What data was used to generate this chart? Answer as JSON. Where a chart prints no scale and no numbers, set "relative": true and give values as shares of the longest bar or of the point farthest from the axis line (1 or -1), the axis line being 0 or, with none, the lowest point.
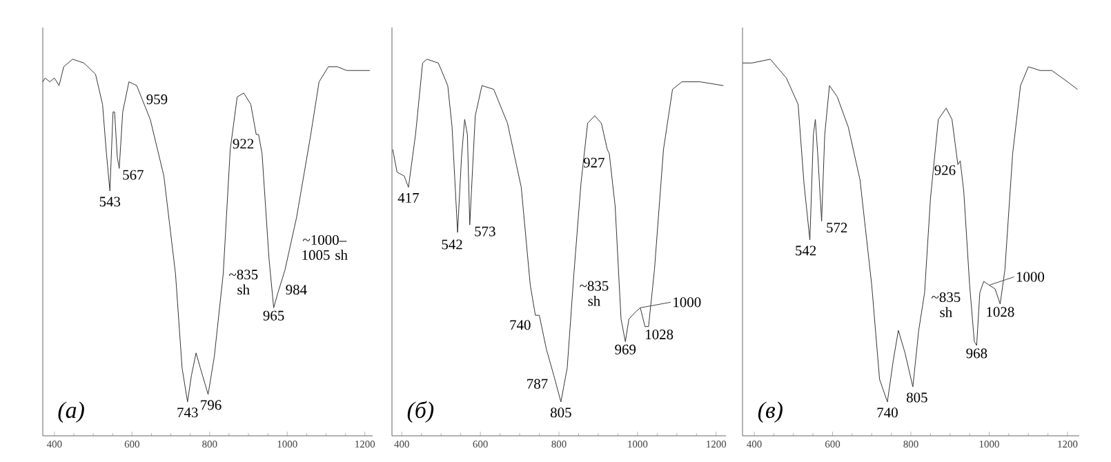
{
  "chart_data": [
    {
      "type": "line",
      "title": "(а)",
      "color": "#333333",
      "relative": true,
      "xlim": [
        370,
        1220
      ],
      "xticks": [
        400,
        600,
        800,
        1000,
        1200
      ],
      "x": [
        370,
        376,
        388,
        400,
        412,
        424,
        447,
        476,
        506,
        524,
        534,
        543,
        551,
        555,
        562,
        567,
        576,
        592,
        612,
        647,
        682,
        712,
        729,
        743,
        753,
        765,
        776,
        796,
        812,
        835,
        853,
        871,
        888,
        906,
        920,
        926,
        935,
        953,
        965,
        976,
        994,
        1024,
        1059,
        1082,
        1106,
        1129,
        1153,
        1212
      ],
      "values": [
        0.94,
        0.95,
        0.94,
        0.95,
        0.93,
        0.98,
        1.0,
        0.99,
        0.96,
        0.88,
        0.75,
        0.65,
        0.86,
        0.86,
        0.74,
        0.71,
        0.86,
        0.94,
        0.93,
        0.84,
        0.69,
        0.43,
        0.18,
        0.09,
        0.16,
        0.22,
        0.18,
        0.11,
        0.21,
        0.43,
        0.76,
        0.9,
        0.91,
        0.88,
        0.8,
        0.8,
        0.75,
        0.47,
        0.34,
        0.38,
        0.44,
        0.58,
        0.79,
        0.94,
        0.98,
        0.98,
        0.97,
        0.97
      ],
      "annotations": [
        {
          "text": "543",
          "x": 543,
          "y": 0.65
        },
        {
          "text": "567",
          "x": 567,
          "y": 0.71
        },
        {
          "text": "959",
          "x": 600,
          "y": 0.93
        },
        {
          "text": "922",
          "x": 926,
          "y": 0.8
        },
        {
          "text": "743",
          "x": 743,
          "y": 0.09
        },
        {
          "text": "796",
          "x": 796,
          "y": 0.11
        },
        {
          "text": "~835 sh",
          "x": 835,
          "y": 0.43
        },
        {
          "text": "965",
          "x": 965,
          "y": 0.34
        },
        {
          "text": "984",
          "x": 984,
          "y": 0.42
        },
        {
          "text": "~1000–1005 sh",
          "x": 1005,
          "y": 0.5
        }
      ]
    },
    {
      "type": "line",
      "title": "(б)",
      "color": "#333333",
      "relative": true,
      "xlim": [
        375,
        1225
      ],
      "xticks": [
        400,
        600,
        800,
        1000,
        1200
      ],
      "x": [
        377,
        388,
        406,
        417,
        435,
        453,
        464,
        493,
        517,
        528,
        542,
        552,
        560,
        567,
        573,
        587,
        604,
        634,
        669,
        704,
        727,
        740,
        750,
        768,
        787,
        805,
        821,
        838,
        856,
        873,
        891,
        908,
        923,
        928,
        943,
        958,
        969,
        978,
        996,
        1007,
        1019,
        1028,
        1043,
        1066,
        1089,
        1113,
        1159,
        1218
      ],
      "values": [
        0.76,
        0.7,
        0.69,
        0.66,
        0.8,
        0.99,
        1.0,
        0.99,
        0.93,
        0.82,
        0.54,
        0.74,
        0.84,
        0.8,
        0.56,
        0.85,
        0.93,
        0.92,
        0.83,
        0.66,
        0.4,
        0.32,
        0.32,
        0.23,
        0.16,
        0.09,
        0.18,
        0.43,
        0.67,
        0.83,
        0.85,
        0.83,
        0.76,
        0.75,
        0.61,
        0.31,
        0.25,
        0.31,
        0.33,
        0.34,
        0.29,
        0.29,
        0.44,
        0.76,
        0.92,
        0.94,
        0.94,
        0.93
      ],
      "annotations": [
        {
          "text": "417",
          "x": 417,
          "y": 0.66
        },
        {
          "text": "542",
          "x": 542,
          "y": 0.54
        },
        {
          "text": "573",
          "x": 573,
          "y": 0.56
        },
        {
          "text": "927",
          "x": 928,
          "y": 0.75
        },
        {
          "text": "740",
          "x": 740,
          "y": 0.32
        },
        {
          "text": "787",
          "x": 787,
          "y": 0.16
        },
        {
          "text": "805",
          "x": 805,
          "y": 0.09
        },
        {
          "text": "~835 sh",
          "x": 838,
          "y": 0.43
        },
        {
          "text": "969",
          "x": 969,
          "y": 0.25
        },
        {
          "text": "1028",
          "x": 1028,
          "y": 0.29
        },
        {
          "text": "1000",
          "x": 1007,
          "y": 0.34
        }
      ]
    },
    {
      "type": "line",
      "title": "(в)",
      "color": "#333333",
      "relative": true,
      "xlim": [
        370,
        1230
      ],
      "xticks": [
        400,
        600,
        800,
        1000,
        1200
      ],
      "x": [
        371,
        394,
        441,
        482,
        512,
        527,
        542,
        551,
        556,
        562,
        572,
        580,
        592,
        612,
        640,
        670,
        700,
        720,
        740,
        755,
        768,
        785,
        805,
        820,
        835,
        850,
        870,
        890,
        905,
        920,
        926,
        935,
        950,
        962,
        968,
        976,
        986,
        1000,
        1015,
        1028,
        1040,
        1060,
        1080,
        1100,
        1130,
        1160,
        1200,
        1225
      ],
      "values": [
        0.99,
        0.99,
        1.0,
        0.95,
        0.88,
        0.67,
        0.52,
        0.8,
        0.84,
        0.75,
        0.57,
        0.8,
        0.93,
        0.9,
        0.82,
        0.68,
        0.4,
        0.15,
        0.09,
        0.2,
        0.28,
        0.22,
        0.13,
        0.28,
        0.38,
        0.63,
        0.84,
        0.87,
        0.84,
        0.72,
        0.73,
        0.65,
        0.4,
        0.25,
        0.24,
        0.38,
        0.41,
        0.4,
        0.39,
        0.35,
        0.44,
        0.75,
        0.93,
        0.98,
        0.97,
        0.97,
        0.94,
        0.92
      ],
      "annotations": [
        {
          "text": "542",
          "x": 542,
          "y": 0.52
        },
        {
          "text": "572",
          "x": 572,
          "y": 0.57
        },
        {
          "text": "926",
          "x": 926,
          "y": 0.73
        },
        {
          "text": "740",
          "x": 740,
          "y": 0.09
        },
        {
          "text": "805",
          "x": 805,
          "y": 0.13
        },
        {
          "text": "~835 sh",
          "x": 838,
          "y": 0.4
        },
        {
          "text": "968",
          "x": 968,
          "y": 0.24
        },
        {
          "text": "1028",
          "x": 1028,
          "y": 0.35
        },
        {
          "text": "1000",
          "x": 1000,
          "y": 0.4
        }
      ]
    }
  ]
}
